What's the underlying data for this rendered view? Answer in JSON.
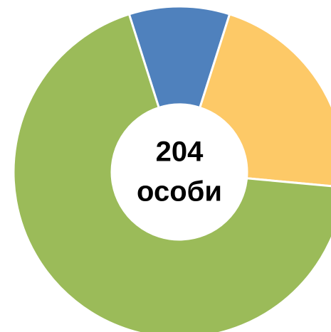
{
  "chart_data": {
    "type": "donut",
    "values": [
      20,
      44,
      140
    ],
    "colors": [
      "#4f81bd",
      "#fdc967",
      "#9bbb59"
    ],
    "center_value": 204,
    "center_unit": "особи"
  }
}
